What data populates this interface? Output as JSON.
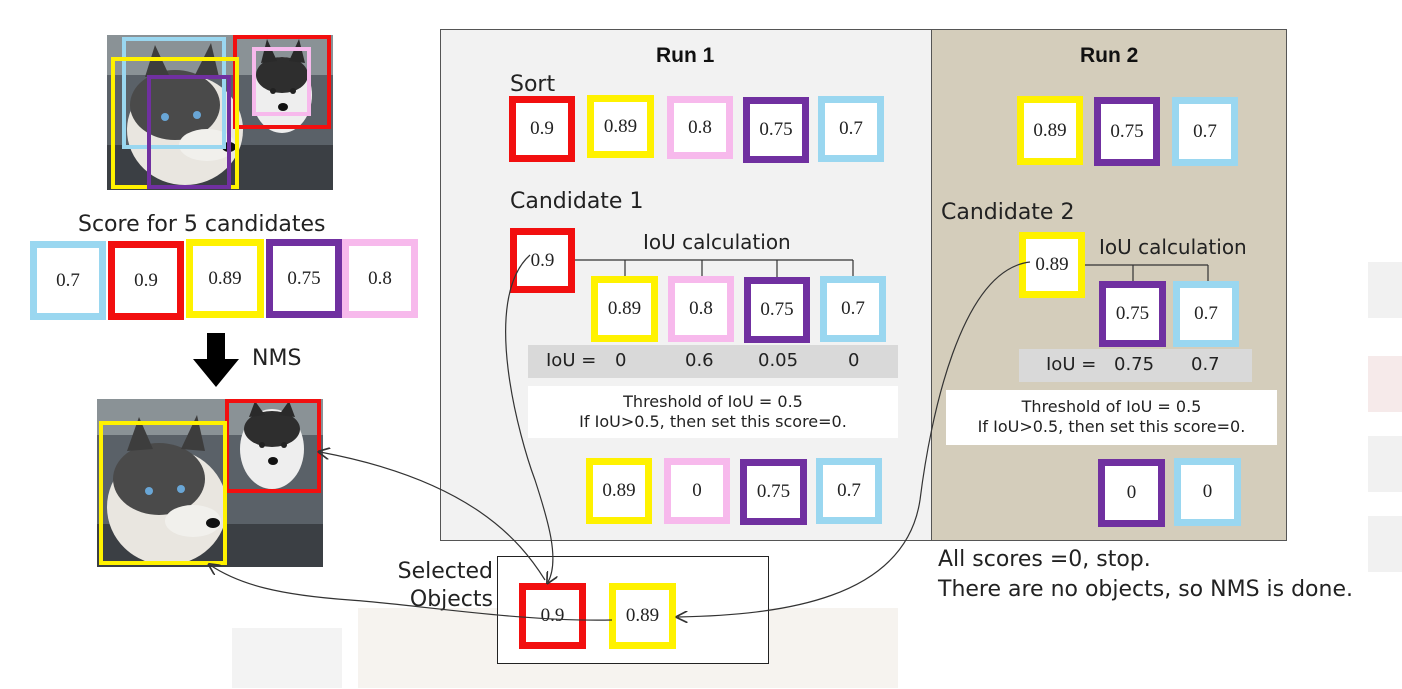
{
  "left": {
    "score_label": "Score for 5 candidates",
    "scores": [
      "0.7",
      "0.9",
      "0.89",
      "0.75",
      "0.8"
    ],
    "nms_label": "NMS"
  },
  "run1": {
    "title": "Run 1",
    "sort_label": "Sort",
    "sorted": [
      "0.9",
      "0.89",
      "0.8",
      "0.75",
      "0.7"
    ],
    "candidate_label": "Candidate 1",
    "candidate_value": "0.9",
    "iou_title": "IoU calculation",
    "compare": [
      "0.89",
      "0.8",
      "0.75",
      "0.7"
    ],
    "iou_label": "IoU =",
    "iou_values": [
      "0",
      "0.6",
      "0.05",
      "0"
    ],
    "threshold_line1": "Threshold of IoU = 0.5",
    "threshold_line2": "If IoU>0.5, then set this score=0.",
    "result": [
      "0.89",
      "0",
      "0.75",
      "0.7"
    ]
  },
  "run2": {
    "title": "Run 2",
    "sorted": [
      "0.89",
      "0.75",
      "0.7"
    ],
    "candidate_label": "Candidate 2",
    "candidate_value": "0.89",
    "iou_title": "IoU calculation",
    "compare": [
      "0.75",
      "0.7"
    ],
    "iou_label": "IoU =",
    "iou_values": [
      "0.75",
      "0.7"
    ],
    "threshold_line1": "Threshold of IoU = 0.5",
    "threshold_line2": "If IoU>0.5, then set this score=0.",
    "result": [
      "0",
      "0"
    ]
  },
  "selected": {
    "label_line1": "Selected",
    "label_line2": "Objects",
    "values": [
      "0.9",
      "0.89"
    ]
  },
  "end_note": {
    "line1": "All scores =0, stop.",
    "line2": "There are no objects, so NMS is done."
  },
  "colors": {
    "red": "#f20f0f",
    "yellow": "#fff200",
    "pink": "#f7b9ec",
    "purple": "#7030a0",
    "blue": "#9ad7f0",
    "run1_bg": "#f2f2f2",
    "run2_bg": "#d4cdbb"
  }
}
